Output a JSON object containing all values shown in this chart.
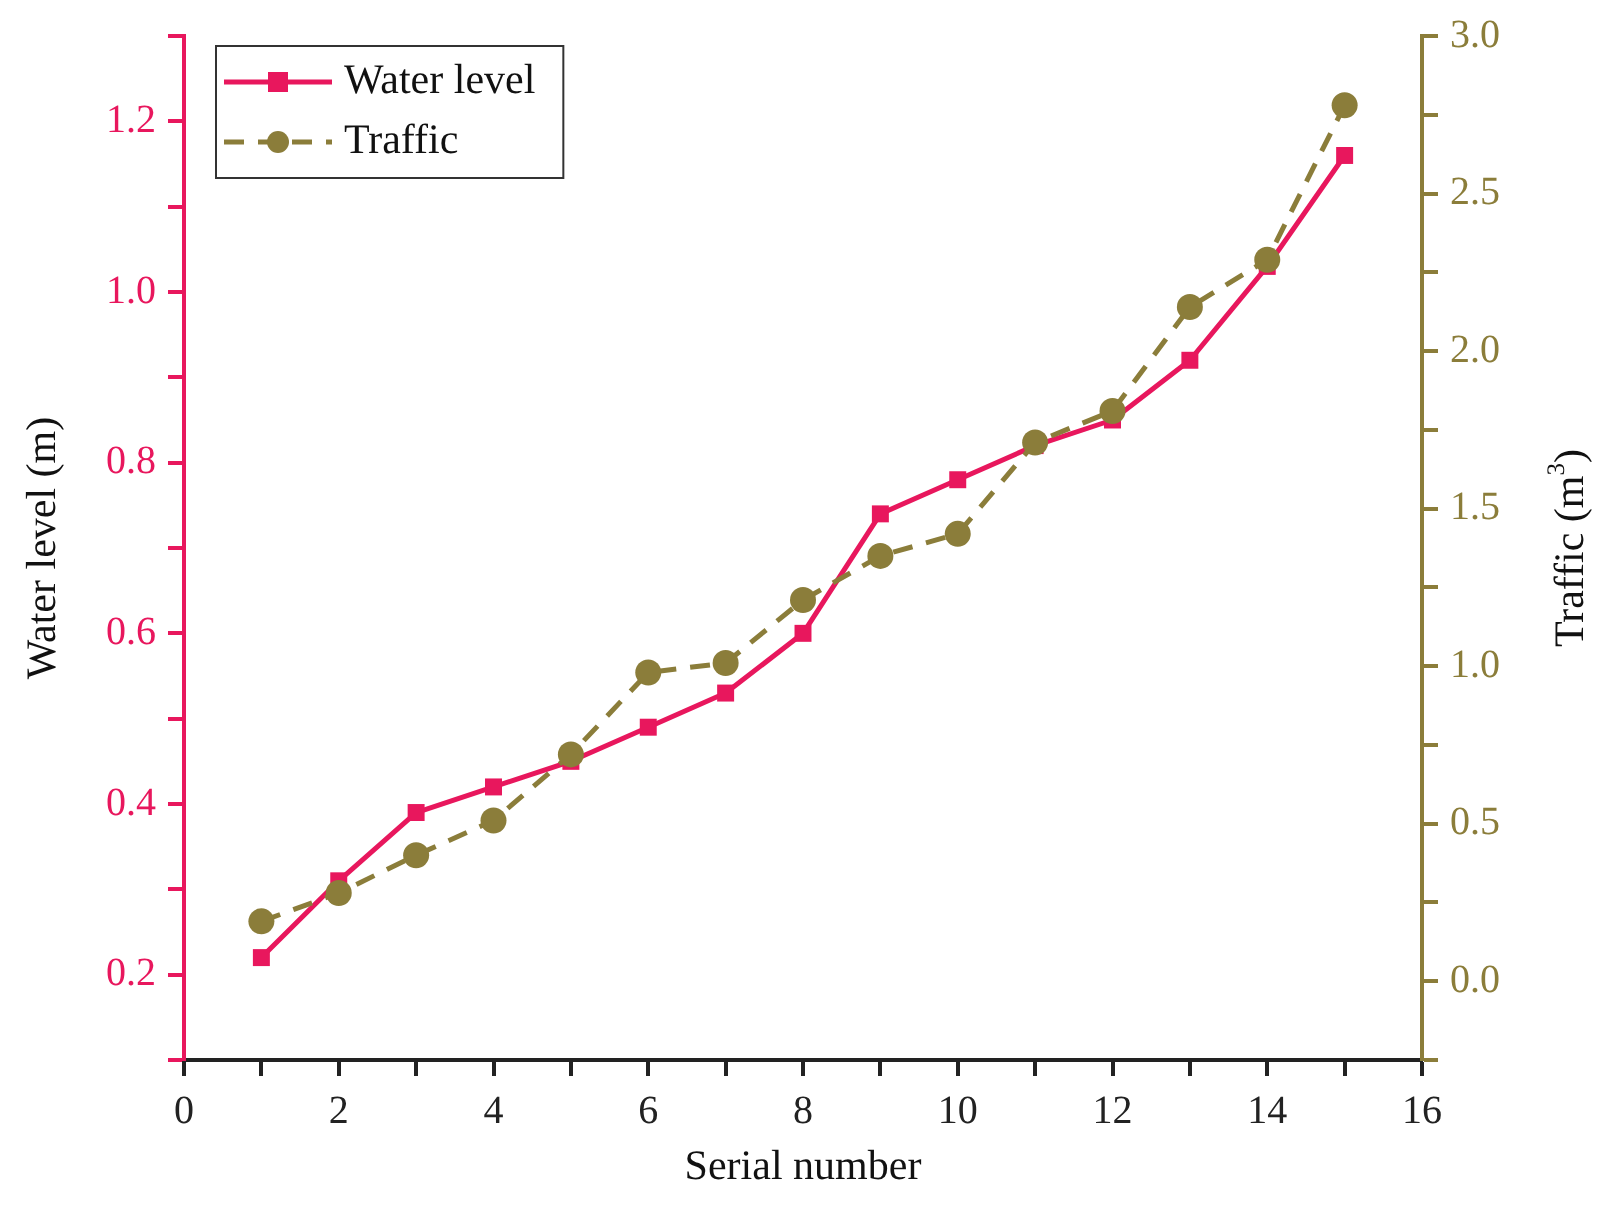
{
  "chart_data": {
    "type": "line",
    "xlabel": "Serial number",
    "ylabel": "Water level (m)",
    "y2label": "Traffic (m$^{3}$)",
    "x": [
      1,
      2,
      3,
      4,
      5,
      6,
      7,
      8,
      9,
      10,
      11,
      12,
      13,
      14,
      15
    ],
    "series": [
      {
        "name": "Water level",
        "color": "#e8175d",
        "marker": "square",
        "line_style": "solid",
        "values": [
          0.22,
          0.31,
          0.39,
          0.42,
          0.45,
          0.49,
          0.53,
          0.6,
          0.74,
          0.78,
          0.82,
          0.85,
          0.92,
          1.03,
          1.16
        ]
      },
      {
        "name": "Traffic",
        "color": "#8b7d3a",
        "marker": "circle",
        "line_style": "dashed",
        "axis": "y2",
        "values": [
          0.19,
          0.28,
          0.4,
          0.51,
          0.72,
          0.98,
          1.01,
          1.21,
          1.35,
          1.42,
          1.71,
          1.81,
          2.14,
          2.29,
          2.78
        ]
      }
    ],
    "xlim": [
      0,
      16
    ],
    "xticks": [
      0,
      {
        "value": 1,
        "label": null
      },
      2,
      {
        "value": 3,
        "label": null
      },
      4,
      {
        "value": 5,
        "label": null
      },
      6,
      {
        "value": 7,
        "label": null
      },
      8,
      {
        "value": 9,
        "label": null
      },
      10,
      {
        "value": 11,
        "label": null
      },
      12,
      {
        "value": 13,
        "label": null
      },
      14,
      {
        "value": 15,
        "label": null
      },
      16
    ],
    "ylim": [
      0.1,
      1.3
    ],
    "yticks": [
      {
        "value": 0.1,
        "label": null
      },
      0.2,
      {
        "value": 0.3,
        "label": null
      },
      0.4,
      {
        "value": 0.5,
        "label": null
      },
      0.6,
      {
        "value": 0.7,
        "label": null
      },
      0.8,
      {
        "value": 0.9,
        "label": null
      },
      {
        "value": 1,
        "label": "1.0"
      },
      {
        "value": 1.1,
        "label": null
      },
      1.2,
      {
        "value": 1.3,
        "label": null
      }
    ],
    "y2lim": [
      -0.25,
      3
    ],
    "y2ticks": [
      {
        "value": -0.25,
        "label": null
      },
      {
        "value": 0,
        "label": "0.0"
      },
      {
        "value": 0.25,
        "label": null
      },
      0.5,
      {
        "value": 0.75,
        "label": null
      },
      {
        "value": 1,
        "label": "1.0"
      },
      {
        "value": 1.25,
        "label": null
      },
      1.5,
      {
        "value": 1.75,
        "label": null
      },
      {
        "value": 2,
        "label": "2.0"
      },
      {
        "value": 2.25,
        "label": null
      },
      2.5,
      {
        "value": 2.75,
        "label": null
      },
      {
        "value": 3,
        "label": "3.0"
      }
    ],
    "grid": false,
    "legend": "top left"
  }
}
